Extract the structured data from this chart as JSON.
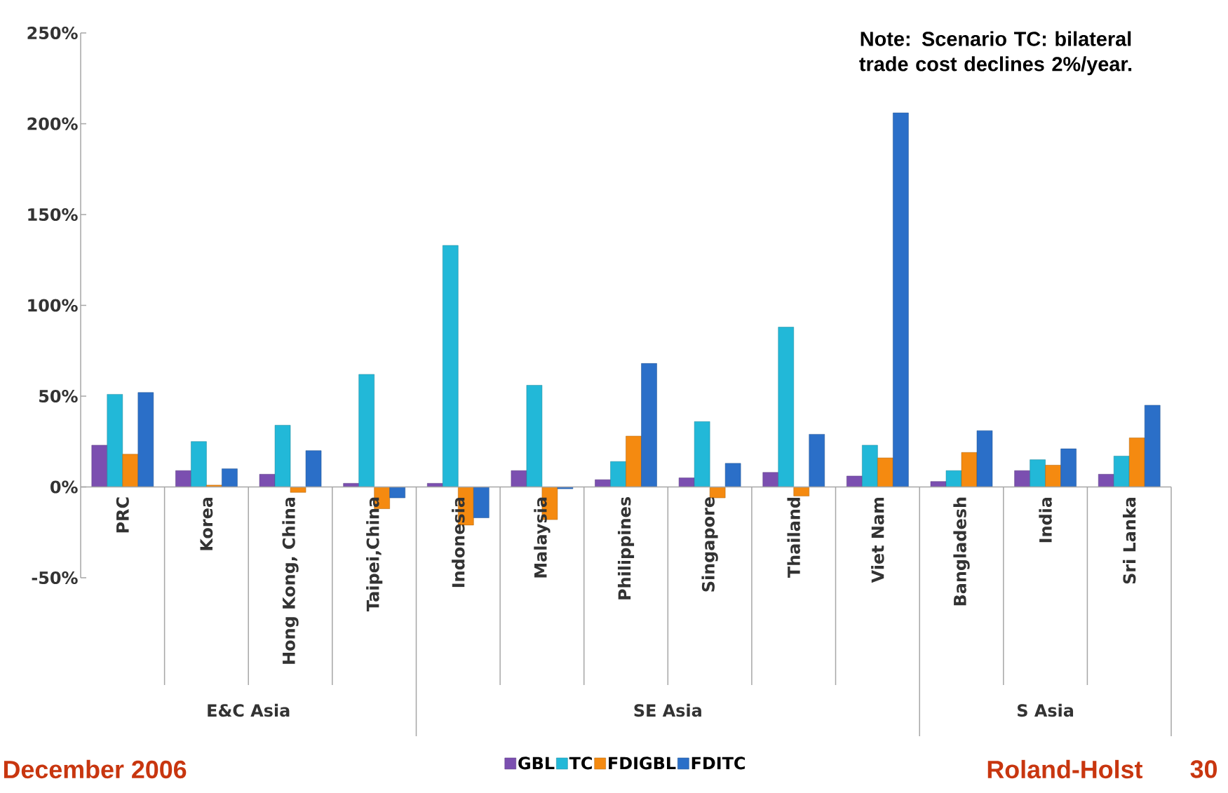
{
  "chart_data": {
    "type": "bar",
    "categories": [
      "PRC",
      "Korea",
      "Hong Kong, China",
      "Taipei,China",
      "Indonesia",
      "Malaysia",
      "Philippines",
      "Singapore",
      "Thailand",
      "Viet Nam",
      "Bangladesh",
      "India",
      "Sri Lanka"
    ],
    "series": [
      {
        "name": "GBL",
        "color": "#7b4fb0",
        "values": [
          23,
          9,
          7,
          2,
          2,
          9,
          4,
          5,
          8,
          6,
          3,
          9,
          7
        ]
      },
      {
        "name": "TC",
        "color": "#22b8d8",
        "values": [
          51,
          25,
          34,
          62,
          133,
          56,
          14,
          36,
          88,
          23,
          9,
          15,
          17
        ]
      },
      {
        "name": "FDIGBL",
        "color": "#f58a10",
        "values": [
          18,
          1,
          -3,
          -12,
          -21,
          -18,
          28,
          -6,
          -5,
          16,
          19,
          12,
          27
        ]
      },
      {
        "name": "FDITC",
        "color": "#2b6fc8",
        "values": [
          52,
          10,
          20,
          -6,
          -17,
          -1,
          68,
          13,
          29,
          206,
          31,
          21,
          45
        ]
      }
    ],
    "ylim": [
      -50,
      250
    ],
    "yticks": [
      {
        "value": -50,
        "label": "-50%"
      },
      {
        "value": 0,
        "label": "0%"
      },
      {
        "value": 50,
        "label": "50%"
      },
      {
        "value": 100,
        "label": "100%"
      },
      {
        "value": 150,
        "label": "150%"
      },
      {
        "value": 200,
        "label": "200%"
      },
      {
        "value": 250,
        "label": "250%"
      }
    ],
    "legend": "bottom",
    "annotations": [
      "E&C Asia",
      "SE Asia",
      "S Asia",
      "Note: Scenario TC: bilateral trade cost declines 2%/year.",
      "December 2006",
      "Roland-Holst",
      "30"
    ]
  }
}
